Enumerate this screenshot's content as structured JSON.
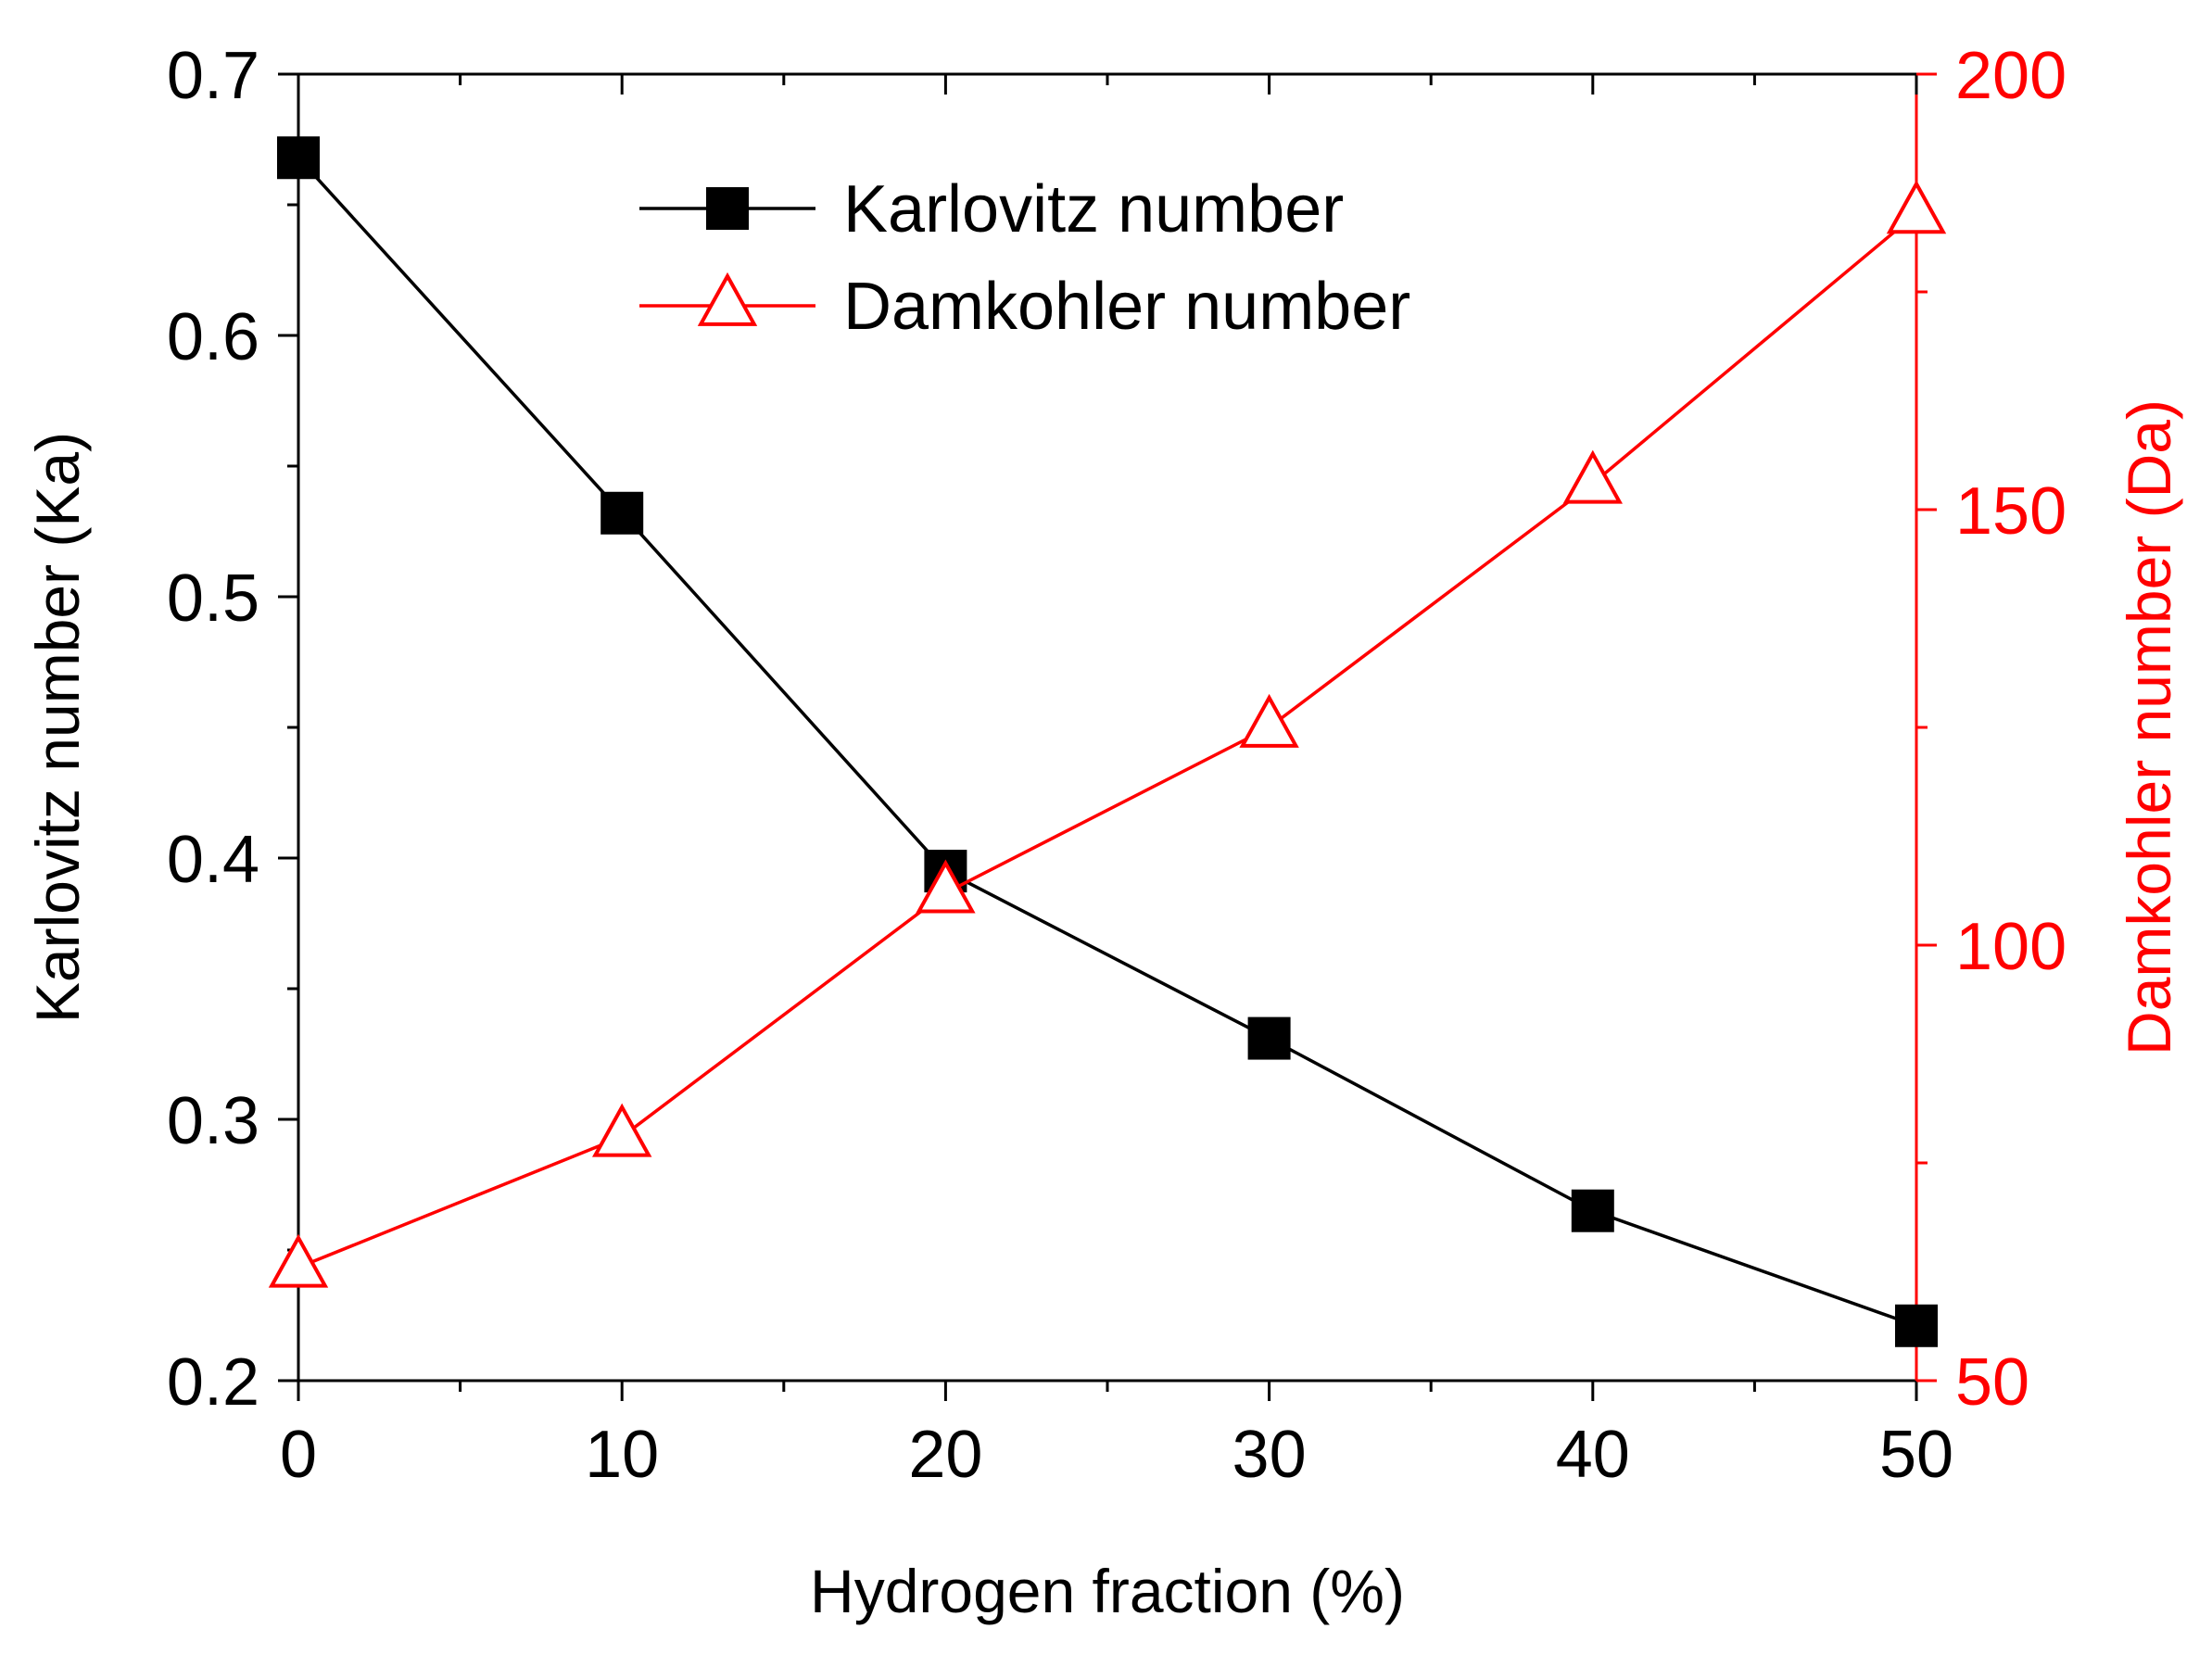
{
  "chart_data": {
    "type": "line",
    "xlabel": "Hydrogen fraction (%)",
    "ylabel_left": "Karlovitz number (Ka)",
    "ylabel_right": "Damkohler number (Da)",
    "xlim": [
      0,
      50
    ],
    "ylim_left": [
      0.2,
      0.7
    ],
    "ylim_right": [
      50,
      200
    ],
    "x_ticks": [
      "0",
      "10",
      "20",
      "30",
      "40",
      "50"
    ],
    "y_left_ticks": [
      "0.2",
      "0.3",
      "0.4",
      "0.5",
      "0.6",
      "0.7"
    ],
    "y_right_ticks": [
      "50",
      "100",
      "150",
      "200"
    ],
    "grid": false,
    "legend_position": "top-center",
    "series": [
      {
        "name": "Karlovitz number",
        "axis": "left",
        "marker": "square",
        "color": "#000000",
        "x": [
          0,
          10,
          20,
          30,
          40,
          50
        ],
        "y": [
          0.668,
          0.532,
          0.395,
          0.331,
          0.265,
          0.221
        ]
      },
      {
        "name": "Damkohler number",
        "axis": "right",
        "marker": "triangle-open",
        "color": "#ff0000",
        "x": [
          0,
          10,
          20,
          30,
          40,
          50
        ],
        "y": [
          63,
          78,
          106,
          125,
          153,
          184
        ]
      }
    ]
  }
}
